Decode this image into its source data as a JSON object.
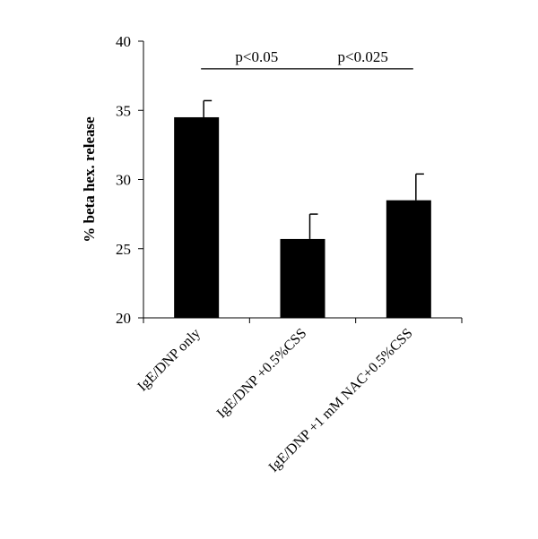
{
  "chart_data": {
    "type": "bar",
    "categories": [
      "IgE/DNP only",
      "IgE/DNP +0.5%CSS",
      "IgE/DNP +1 mM NAC+0.5%CSS"
    ],
    "values": [
      34.5,
      25.7,
      28.5
    ],
    "error_upper": [
      35.7,
      27.5,
      30.4
    ],
    "ylabel": "% beta hex. release",
    "xlabel": "",
    "ylim": [
      20,
      40
    ],
    "yticks": [
      20,
      25,
      30,
      35,
      40
    ],
    "grid": false,
    "legend": "none",
    "bar_color": "#000000",
    "annotations": [
      {
        "text": "p<0.05",
        "from_category": 0,
        "to_category": 1,
        "y": 38
      },
      {
        "text": "p<0.025",
        "from_category": 1,
        "to_category": 2,
        "y": 38
      }
    ]
  }
}
